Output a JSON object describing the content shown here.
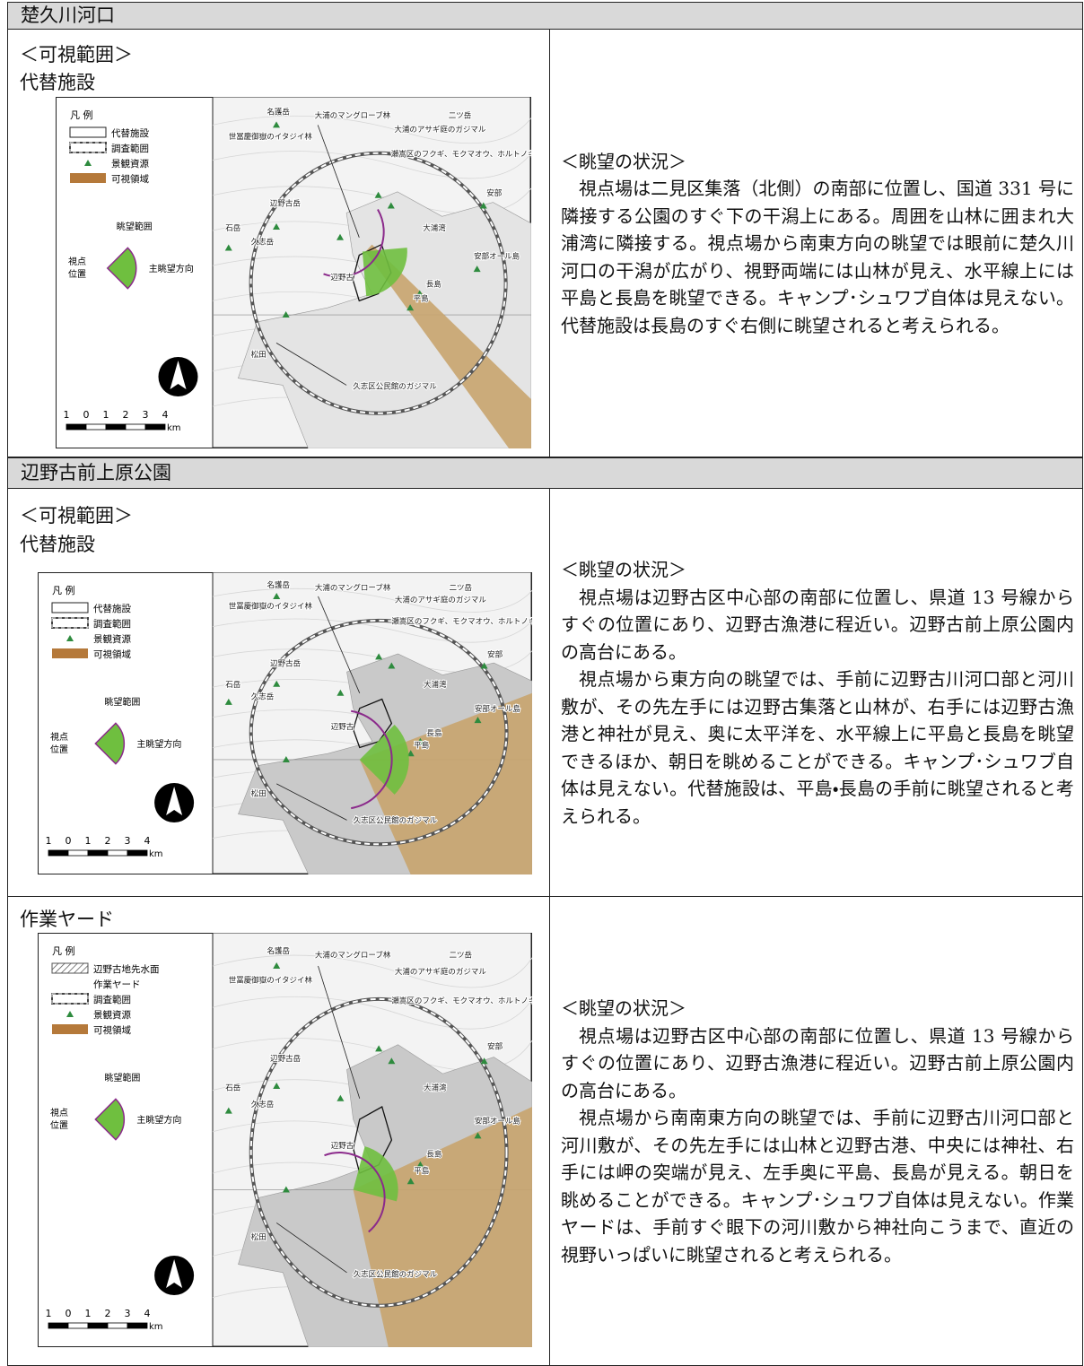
{
  "sections": [
    {
      "title": "楚久川河口",
      "rows": [
        {
          "heading": "＜可視範囲＞",
          "subheading": "代替施設",
          "legend": {
            "title": "凡 例",
            "items": [
              "代替施設",
              "調査範囲",
              "景観資源",
              "可視領域"
            ],
            "view_range": "眺望範囲",
            "viewpoint": [
              "視点",
              "位置"
            ],
            "main_direction": "主眺望方向"
          },
          "description": {
            "heading": "＜眺望の状況＞",
            "paragraphs": [
              "視点場は二見区集落（北側）の南部に位置し、国道 331 号に隣接する公園のすぐ下の干潟上にある。周囲を山林に囲まれ大浦湾に隣接する。視点場から南東方向の眺望では眼前に楚久川河口の干潟が広がり、視野両端には山林が見え、水平線上には平島と長島を眺望できる。キャンプ･シュワブ自体は見えない。代替施設は長島のすぐ右側に眺望されると考えられる。"
            ]
          }
        }
      ]
    },
    {
      "title": "辺野古前上原公園",
      "rows": [
        {
          "heading": "＜可視範囲＞",
          "subheading": "代替施設",
          "legend": {
            "title": "凡 例",
            "items": [
              "代替施設",
              "調査範囲",
              "景観資源",
              "可視領域"
            ],
            "view_range": "眺望範囲",
            "viewpoint": [
              "視点",
              "位置"
            ],
            "main_direction": "主眺望方向"
          },
          "description": {
            "heading": "＜眺望の状況＞",
            "paragraphs": [
              "視点場は辺野古区中心部の南部に位置し、県道 13 号線からすぐの位置にあり、辺野古漁港に程近い。辺野古前上原公園内の高台にある。",
              "視点場から東方向の眺望では、手前に辺野古川河口部と河川敷が、その先左手には辺野古集落と山林が、右手には辺野古漁港と神社が見え、奥に太平洋を、水平線上に平島と長島を眺望できるほか、朝日を眺めることができる。キャンプ･シュワブ自体は見えない。代替施設は、平島・長島の手前に眺望されると考えられる。"
            ]
          }
        },
        {
          "subheading": "作業ヤード",
          "legend": {
            "title": "凡 例",
            "items": [
              "辺野古地先水面",
              "作業ヤード",
              "調査範囲",
              "景観資源",
              "可視領域"
            ],
            "view_range": "眺望範囲",
            "viewpoint": [
              "視点",
              "位置"
            ],
            "main_direction": "主眺望方向"
          },
          "description": {
            "heading": "＜眺望の状況＞",
            "paragraphs": [
              "視点場は辺野古区中心部の南部に位置し、県道 13 号線からすぐの位置にあり、辺野古漁港に程近い。辺野古前上原公園内の高台にある。",
              "視点場から南南東方向の眺望では、手前に辺野古川河口部と河川敷が、その先左手には山林と辺野古港、中央には神社、右手には岬の突端が見え、左手奥に平島、長島が見える。朝日を眺めることができる。キャンプ･シュワブ自体は見えない。作業ヤードは、手前すぐ眼下の河川敷から神社向こうまで、直近の視野いっぱいに眺望されると考えられる。"
            ]
          }
        }
      ]
    }
  ],
  "map_labels": [
    "名護岳",
    "大浦のマングローブ林",
    "二ツ岳",
    "世冨慶御嶽のイタジイ林",
    "大浦のアサギ庭のガジマル",
    "瀬嵩区のフクギ、モクマオウ、ホルトノキ",
    "辺野古岳",
    "石岳",
    "久志岳",
    "大浦湾",
    "安部",
    "安部オール島",
    "辺野古",
    "長島",
    "平島",
    "久志区公民館のガジマル",
    "松田"
  ],
  "scale": {
    "ticks": [
      "1",
      "0",
      "1",
      "2",
      "3",
      "4"
    ],
    "unit": "km"
  }
}
